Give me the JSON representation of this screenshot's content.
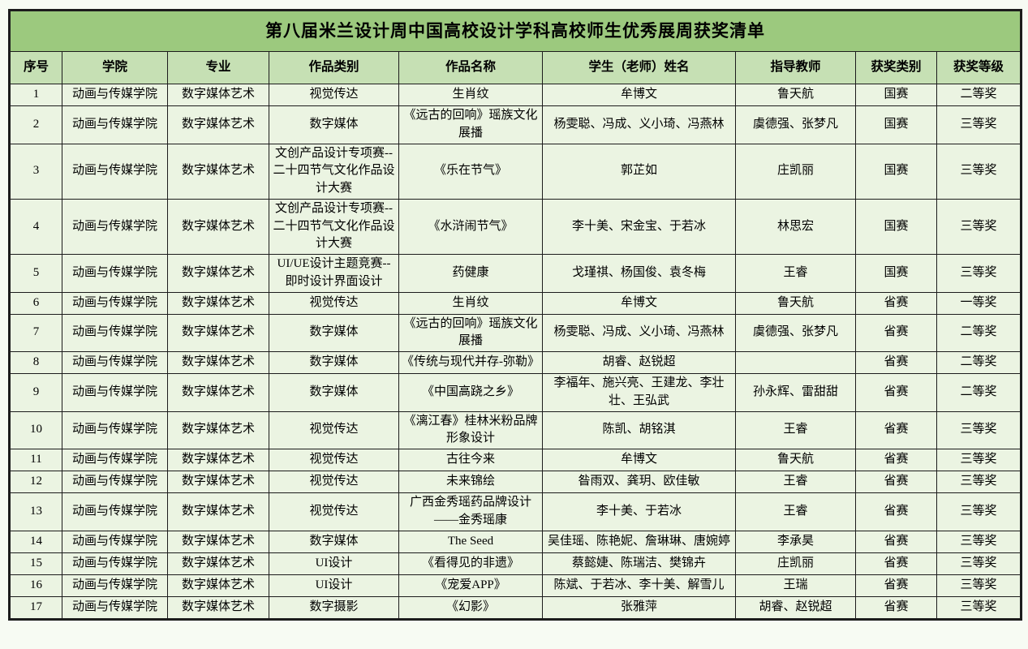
{
  "page": {
    "background_color": "#f7fbf3"
  },
  "table": {
    "title": "第八届米兰设计周中国高校设计学科高校师生优秀展周获奖清单",
    "colors": {
      "title_background": "#9cc97e",
      "header_background": "#c6e0b4",
      "cell_background": "#ebf4e2",
      "border": "#1c1c1c"
    },
    "columns": [
      {
        "key": "no",
        "label": "序号"
      },
      {
        "key": "college",
        "label": "学院"
      },
      {
        "key": "major",
        "label": "专业"
      },
      {
        "key": "category",
        "label": "作品类别"
      },
      {
        "key": "work",
        "label": "作品名称"
      },
      {
        "key": "students",
        "label": "学生（老师）姓名"
      },
      {
        "key": "teachers",
        "label": "指导教师"
      },
      {
        "key": "award_type",
        "label": "获奖类别"
      },
      {
        "key": "award_level",
        "label": "获奖等级"
      }
    ],
    "rows": [
      {
        "no": "1",
        "college": "动画与传媒学院",
        "major": "数字媒体艺术",
        "category": "视觉传达",
        "work": "生肖纹",
        "students": "牟博文",
        "teachers": "鲁天航",
        "award_type": "国赛",
        "award_level": "二等奖"
      },
      {
        "no": "2",
        "college": "动画与传媒学院",
        "major": "数字媒体艺术",
        "category": "数字媒体",
        "work": "《远古的回响》瑶族文化展播",
        "students": "杨雯聪、冯成、义小琦、冯燕林",
        "teachers": "虞德强、张梦凡",
        "award_type": "国赛",
        "award_level": "三等奖"
      },
      {
        "no": "3",
        "college": "动画与传媒学院",
        "major": "数字媒体艺术",
        "category": "文创产品设计专项赛--二十四节气文化作品设计大赛",
        "work": "《乐在节气》",
        "students": "郭芷如",
        "teachers": "庄凯丽",
        "award_type": "国赛",
        "award_level": "三等奖"
      },
      {
        "no": "4",
        "college": "动画与传媒学院",
        "major": "数字媒体艺术",
        "category": "文创产品设计专项赛--二十四节气文化作品设计大赛",
        "work": "《水浒闹节气》",
        "students": "李十美、宋金宝、于若冰",
        "teachers": "林思宏",
        "award_type": "国赛",
        "award_level": "三等奖"
      },
      {
        "no": "5",
        "college": "动画与传媒学院",
        "major": "数字媒体艺术",
        "category": "UI/UE设计主题竞赛--即时设计界面设计",
        "work": "药健康",
        "students": "戈瑾祺、杨国俊、袁冬梅",
        "teachers": "王睿",
        "award_type": "国赛",
        "award_level": "三等奖"
      },
      {
        "no": "6",
        "college": "动画与传媒学院",
        "major": "数字媒体艺术",
        "category": "视觉传达",
        "work": "生肖纹",
        "students": "牟博文",
        "teachers": "鲁天航",
        "award_type": "省赛",
        "award_level": "一等奖"
      },
      {
        "no": "7",
        "college": "动画与传媒学院",
        "major": "数字媒体艺术",
        "category": "数字媒体",
        "work": "《远古的回响》瑶族文化展播",
        "students": "杨雯聪、冯成、义小琦、冯燕林",
        "teachers": "虞德强、张梦凡",
        "award_type": "省赛",
        "award_level": "二等奖"
      },
      {
        "no": "8",
        "college": "动画与传媒学院",
        "major": "数字媒体艺术",
        "category": "数字媒体",
        "work": "《传统与现代并存-弥勒》",
        "students": "胡睿、赵锐超",
        "teachers": "",
        "award_type": "省赛",
        "award_level": "二等奖"
      },
      {
        "no": "9",
        "college": "动画与传媒学院",
        "major": "数字媒体艺术",
        "category": "数字媒体",
        "work": "《中国高跷之乡》",
        "students": "李福年、施兴亮、王建龙、李壮壮、王弘武",
        "teachers": "孙永辉、雷甜甜",
        "award_type": "省赛",
        "award_level": "二等奖"
      },
      {
        "no": "10",
        "college": "动画与传媒学院",
        "major": "数字媒体艺术",
        "category": "视觉传达",
        "work": "《漓江春》桂林米粉品牌形象设计",
        "students": "陈凯、胡铭淇",
        "teachers": "王睿",
        "award_type": "省赛",
        "award_level": "三等奖"
      },
      {
        "no": "11",
        "college": "动画与传媒学院",
        "major": "数字媒体艺术",
        "category": "视觉传达",
        "work": "古往今来",
        "students": "牟博文",
        "teachers": "鲁天航",
        "award_type": "省赛",
        "award_level": "三等奖"
      },
      {
        "no": "12",
        "college": "动画与传媒学院",
        "major": "数字媒体艺术",
        "category": "视觉传达",
        "work": "未来锦绘",
        "students": "昝雨双、龚玥、欧佳敏",
        "teachers": "王睿",
        "award_type": "省赛",
        "award_level": "三等奖"
      },
      {
        "no": "13",
        "college": "动画与传媒学院",
        "major": "数字媒体艺术",
        "category": "视觉传达",
        "work": "广西金秀瑶药品牌设计——金秀瑶康",
        "students": "李十美、于若冰",
        "teachers": "王睿",
        "award_type": "省赛",
        "award_level": "三等奖"
      },
      {
        "no": "14",
        "college": "动画与传媒学院",
        "major": "数字媒体艺术",
        "category": "数字媒体",
        "work": "The Seed",
        "students": "吴佳瑶、陈艳妮、詹琳琳、唐婉婷",
        "teachers": "李承昊",
        "award_type": "省赛",
        "award_level": "三等奖"
      },
      {
        "no": "15",
        "college": "动画与传媒学院",
        "major": "数字媒体艺术",
        "category": "UI设计",
        "work": "《看得见的非遗》",
        "students": "蔡懿婕、陈瑞洁、樊锦卉",
        "teachers": "庄凯丽",
        "award_type": "省赛",
        "award_level": "三等奖"
      },
      {
        "no": "16",
        "college": "动画与传媒学院",
        "major": "数字媒体艺术",
        "category": "UI设计",
        "work": "《宠爱APP》",
        "students": "陈斌、于若冰、李十美、解雪儿",
        "teachers": "王瑞",
        "award_type": "省赛",
        "award_level": "三等奖"
      },
      {
        "no": "17",
        "college": "动画与传媒学院",
        "major": "数字媒体艺术",
        "category": "数字摄影",
        "work": "《幻影》",
        "students": "张雅萍",
        "teachers": "胡睿、赵锐超",
        "award_type": "省赛",
        "award_level": "三等奖"
      }
    ]
  }
}
